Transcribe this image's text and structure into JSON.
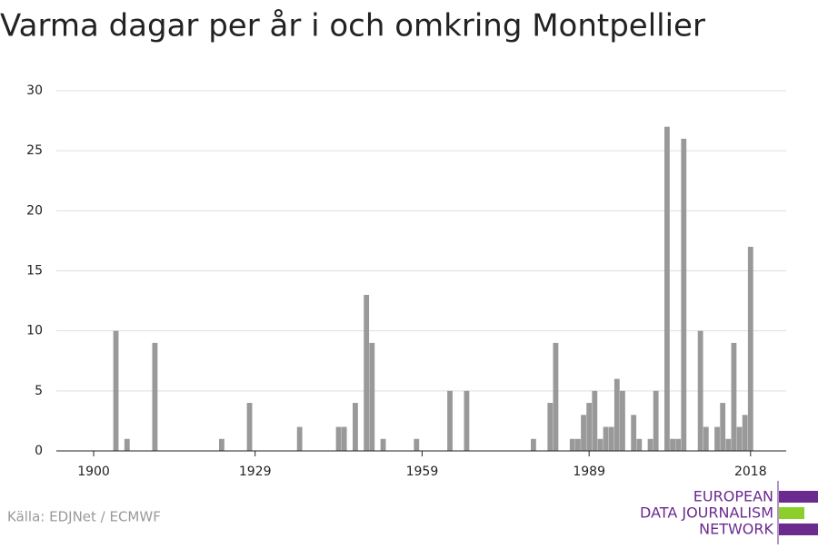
{
  "chart_data": {
    "type": "bar",
    "title": "Varma dagar per år i och omkring Montpellier",
    "source": "Källa: EDJNet / ECMWF",
    "logo": [
      "EUROPEAN",
      "DATA JOURNALISM",
      "NETWORK"
    ],
    "x": [
      1904,
      1906,
      1911,
      1923,
      1928,
      1937,
      1944,
      1945,
      1947,
      1949,
      1950,
      1952,
      1958,
      1964,
      1967,
      1979,
      1982,
      1983,
      1986,
      1987,
      1988,
      1989,
      1990,
      1991,
      1992,
      1993,
      1994,
      1995,
      1997,
      1998,
      2000,
      2001,
      2003,
      2004,
      2005,
      2006,
      2009,
      2010,
      2012,
      2013,
      2014,
      2015,
      2016,
      2017,
      2018
    ],
    "values": [
      10,
      1,
      9,
      1,
      4,
      2,
      2,
      2,
      4,
      13,
      9,
      1,
      1,
      5,
      5,
      1,
      4,
      9,
      1,
      1,
      3,
      4,
      5,
      1,
      2,
      2,
      6,
      5,
      3,
      1,
      1,
      5,
      27,
      1,
      1,
      26,
      10,
      2,
      2,
      4,
      1,
      9,
      2,
      3,
      17
    ],
    "color": "#999999",
    "xlim": [
      1893.3,
      2024.4
    ],
    "xticks": [
      1900,
      1929,
      1959,
      1989,
      2018
    ],
    "ylim": [
      0,
      30
    ],
    "yticks": [
      0,
      5,
      10,
      15,
      20,
      25,
      30
    ],
    "grid": true
  }
}
